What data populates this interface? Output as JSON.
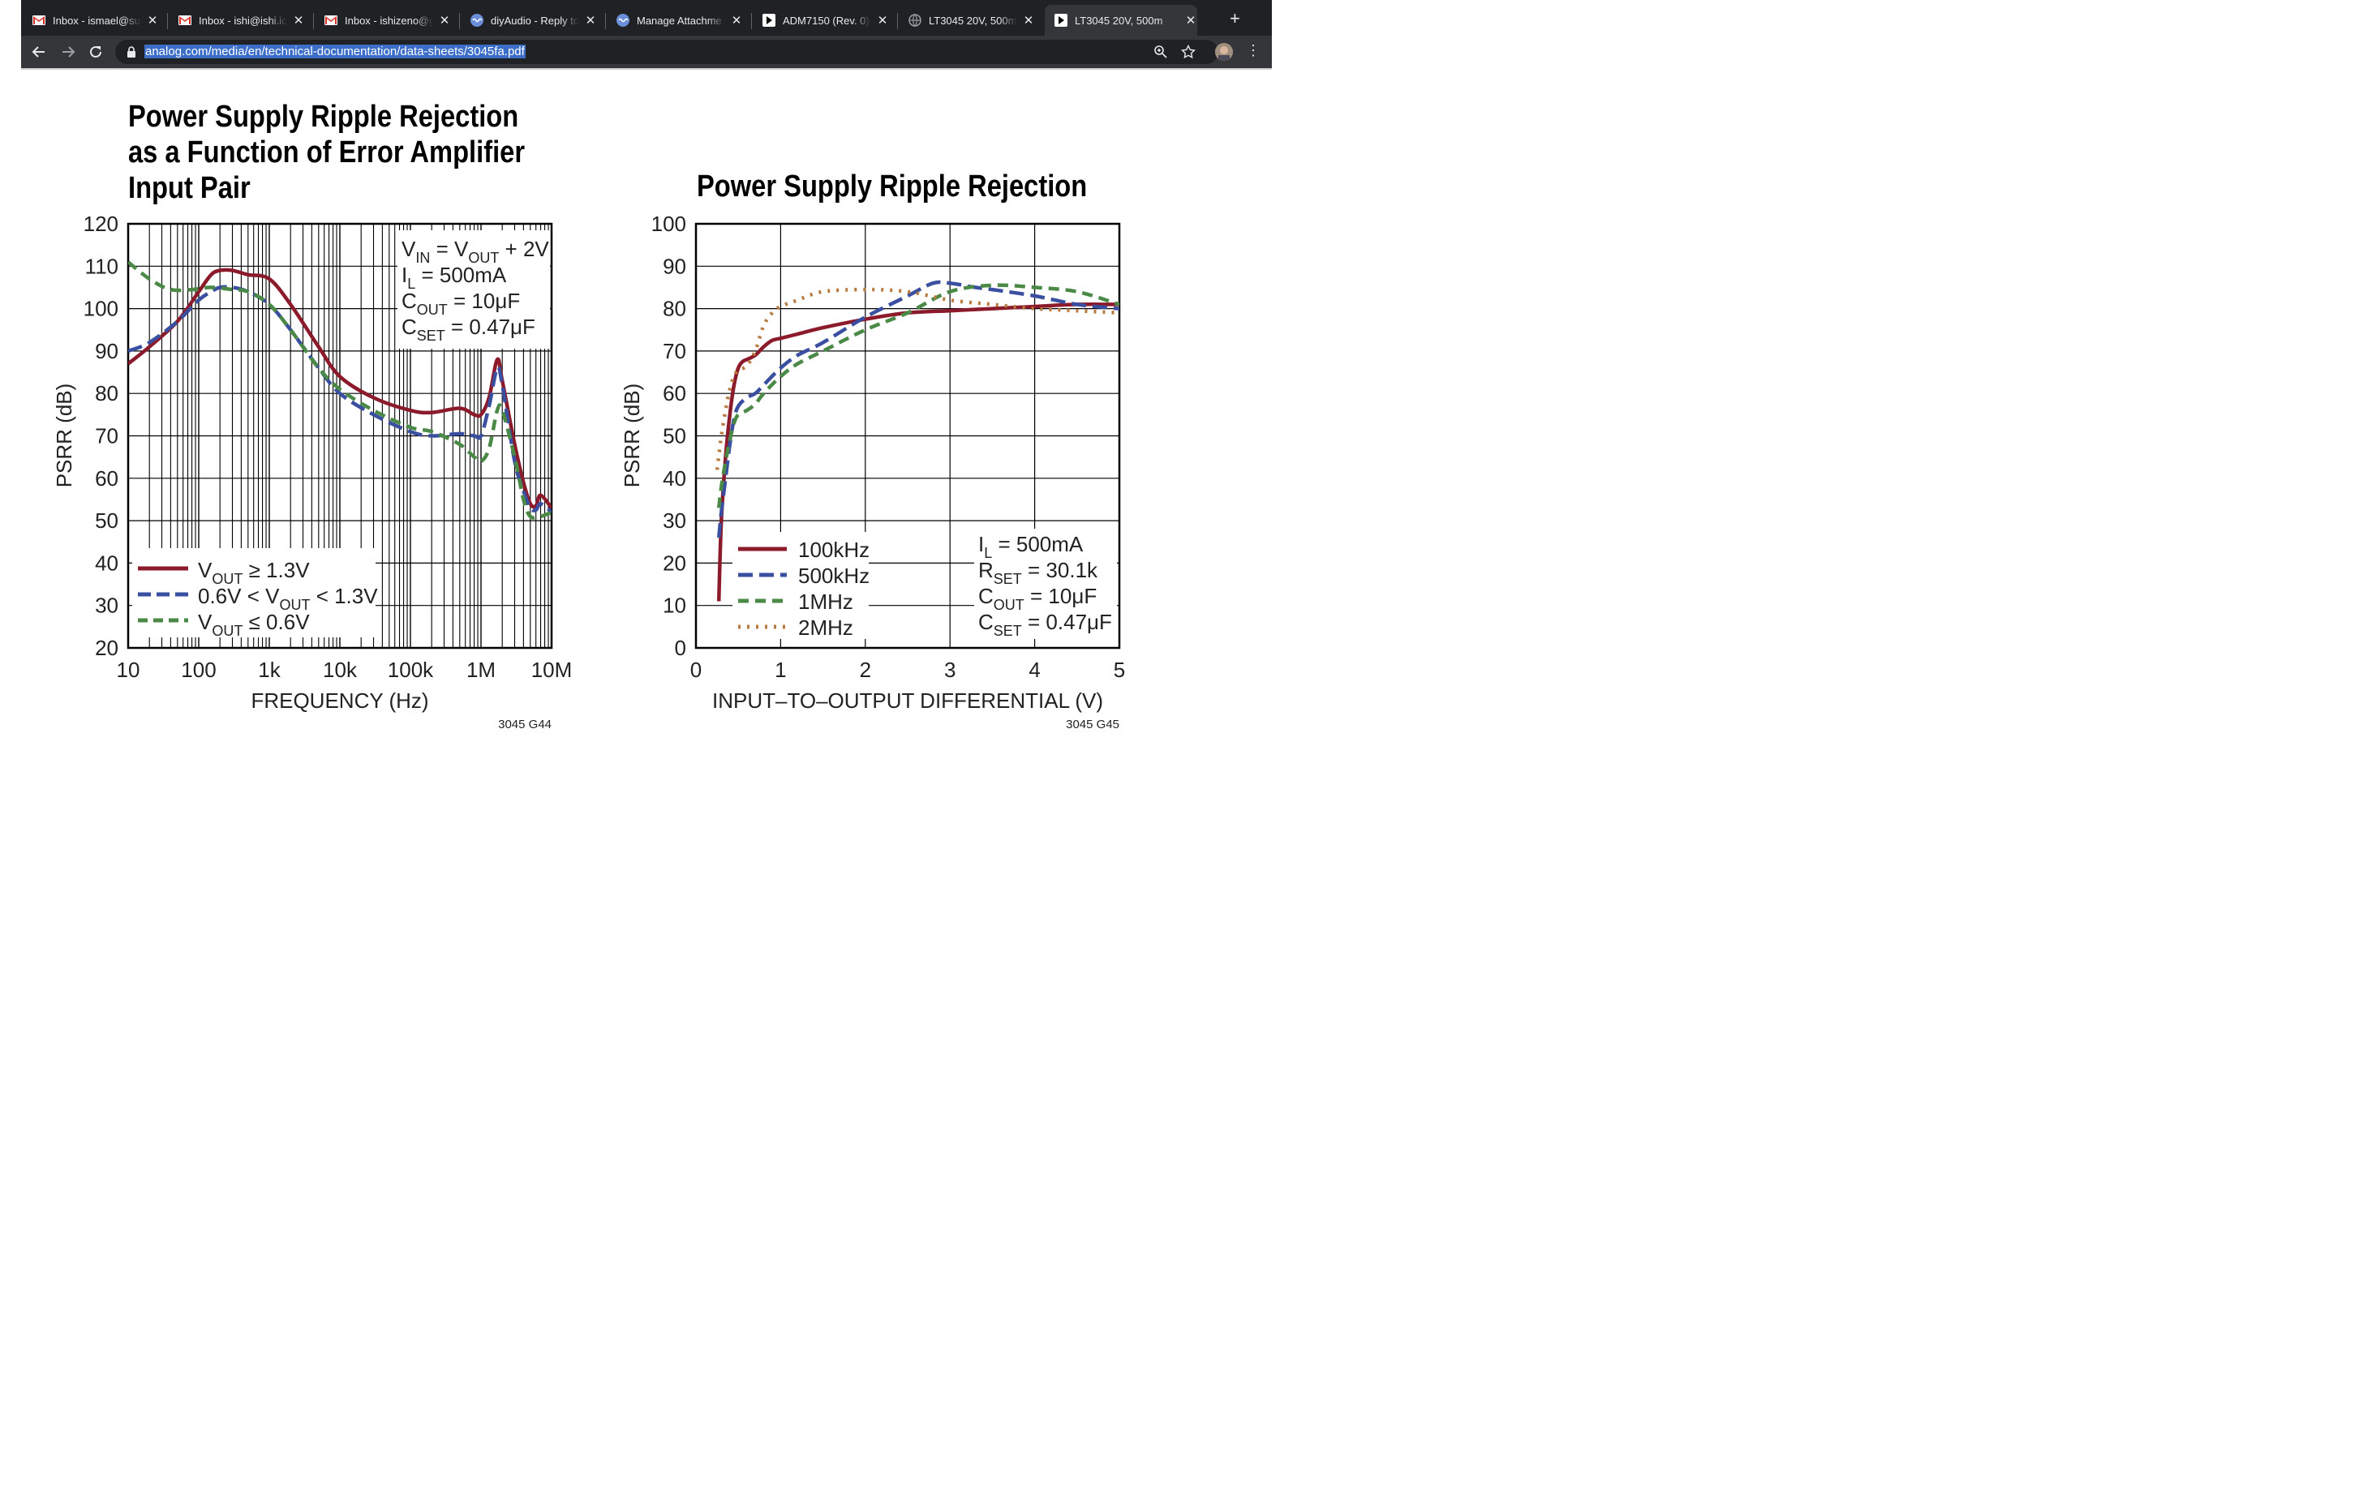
{
  "browser": {
    "tabs": [
      {
        "title": "Inbox - ismael@su",
        "icon": "gmail-icon"
      },
      {
        "title": "Inbox - ishi@ishi.ic",
        "icon": "gmail-icon"
      },
      {
        "title": "Inbox - ishizeno@g",
        "icon": "gmail-icon"
      },
      {
        "title": "diyAudio - Reply to",
        "icon": "diyaudio-icon"
      },
      {
        "title": "Manage Attachme",
        "icon": "diyaudio-icon"
      },
      {
        "title": "ADM7150 (Rev. 0)",
        "icon": "pdf-icon"
      },
      {
        "title": "LT3045 20V, 500m",
        "icon": "globe-icon"
      },
      {
        "title": "LT3045 20V, 500m",
        "icon": "pdf-icon",
        "active": true
      }
    ],
    "new_tab": "+",
    "url": "analog.com/media/en/technical-documentation/data-sheets/3045fa.pdf"
  },
  "document": {
    "left_chart": {
      "title_lines": [
        "Power Supply Ripple Rejection",
        "as a Function of Error Amplifier",
        "Input Pair"
      ],
      "conditions": {
        "vin_main": "V",
        "vin_sub": "IN",
        "vin_mid": " = V",
        "vin_sub2": "OUT",
        "vin_end": " + 2V",
        "il_main": "I",
        "il_sub": "L",
        "il_end": " = 500mA",
        "cout_main": "C",
        "cout_sub": "OUT",
        "cout_end": " = 10μF",
        "cset_main": "C",
        "cset_sub": "SET",
        "cset_end": " = 0.47μF"
      },
      "legend": [
        {
          "pre": "V",
          "sub": "OUT",
          "post": " ≥ 1.3V"
        },
        {
          "pre": "0.6V < V",
          "sub": "OUT",
          "post": " < 1.3V"
        },
        {
          "pre": "V",
          "sub": "OUT",
          "post": " ≤ 0.6V"
        }
      ],
      "code": "3045 G44"
    },
    "right_chart": {
      "title": "Power Supply Ripple Rejection",
      "conditions": {
        "il_main": "I",
        "il_sub": "L",
        "il_end": " = 500mA",
        "rset_main": "R",
        "rset_sub": "SET",
        "rset_end": " = 30.1k",
        "cout_main": "C",
        "cout_sub": "OUT",
        "cout_end": " = 10μF",
        "cset_main": "C",
        "cset_sub": "SET",
        "cset_end": " = 0.47μF"
      },
      "code": "3045 G45"
    }
  },
  "chart_data": [
    {
      "type": "line",
      "xscale": "log",
      "xlabel": "FREQUENCY (Hz)",
      "ylabel": "PSRR (dB)",
      "xlim": [
        10,
        10000000
      ],
      "ylim": [
        20,
        120
      ],
      "x_ticks": [
        10,
        100,
        1000,
        10000,
        100000,
        1000000,
        10000000
      ],
      "x_tick_labels": [
        "10",
        "100",
        "1k",
        "10k",
        "100k",
        "1M",
        "10M"
      ],
      "y_ticks": [
        20,
        30,
        40,
        50,
        60,
        70,
        80,
        90,
        100,
        110,
        120
      ],
      "legend_position": "bottom-left",
      "series": [
        {
          "name": "VOUT ≥ 1.3V",
          "color": "#8b1a2b",
          "dash": "solid",
          "x": [
            10,
            20,
            50,
            100,
            150,
            200,
            300,
            500,
            1000,
            2000,
            5000,
            10000,
            30000,
            100000,
            200000,
            500000,
            800000,
            1000000,
            1300000,
            1700000,
            2000000,
            3000000,
            4000000,
            5000000,
            6000000,
            7000000,
            10000000
          ],
          "y": [
            87,
            91,
            97,
            104,
            108,
            109,
            109,
            108,
            107,
            101,
            91,
            84,
            79,
            76,
            75.5,
            76.5,
            75,
            75,
            79,
            88,
            83,
            68,
            59,
            54,
            53.5,
            56,
            53
          ]
        },
        {
          "name": "0.6V < VOUT < 1.3V",
          "color": "#3a4fa0",
          "dash": "long-dash",
          "x": [
            10,
            20,
            50,
            100,
            150,
            200,
            300,
            500,
            1000,
            2000,
            5000,
            10000,
            30000,
            100000,
            200000,
            500000,
            800000,
            1000000,
            1300000,
            1700000,
            2000000,
            3000000,
            4000000,
            5000000,
            6000000,
            7000000,
            10000000
          ],
          "y": [
            90,
            92,
            97,
            102,
            104,
            105,
            105,
            104,
            101,
            95,
            86,
            80,
            75,
            71,
            70,
            70.5,
            70,
            70,
            77,
            86,
            82,
            64,
            57,
            53,
            52.5,
            54,
            52
          ]
        },
        {
          "name": "VOUT ≤ 0.6V",
          "color": "#4a8a46",
          "dash": "dash",
          "x": [
            10,
            20,
            40,
            80,
            150,
            300,
            500,
            1000,
            2000,
            5000,
            10000,
            30000,
            100000,
            200000,
            500000,
            800000,
            1000000,
            1300000,
            1700000,
            2000000,
            3000000,
            4000000,
            5000000,
            7000000,
            10000000
          ],
          "y": [
            111,
            107,
            104.5,
            104.5,
            105,
            104.5,
            104,
            101,
            95,
            86,
            81,
            76,
            72,
            71,
            68,
            65,
            64,
            67,
            76,
            76,
            65,
            55,
            51,
            51,
            52
          ]
        }
      ]
    },
    {
      "type": "line",
      "xlabel": "INPUT–TO–OUTPUT DIFFERENTIAL (V)",
      "ylabel": "PSRR (dB)",
      "xlim": [
        0,
        5
      ],
      "ylim": [
        0,
        100
      ],
      "x_ticks": [
        0,
        1,
        2,
        3,
        4,
        5
      ],
      "y_ticks": [
        0,
        10,
        20,
        30,
        40,
        50,
        60,
        70,
        80,
        90,
        100
      ],
      "legend_position": "bottom-left",
      "series": [
        {
          "name": "100kHz",
          "color": "#8b1a2b",
          "dash": "solid",
          "x": [
            0.27,
            0.3,
            0.35,
            0.4,
            0.45,
            0.5,
            0.55,
            0.6,
            0.7,
            0.8,
            0.9,
            1.0,
            1.2,
            1.5,
            2.0,
            2.5,
            3.0,
            3.5,
            4.0,
            4.5,
            5.0
          ],
          "y": [
            11,
            30,
            45,
            55,
            62,
            66,
            67.5,
            68,
            69,
            71,
            72.5,
            73,
            74,
            75.5,
            77.5,
            79,
            79.5,
            80,
            80.5,
            81,
            81
          ]
        },
        {
          "name": "500kHz",
          "color": "#3a4fa0",
          "dash": "long-dash",
          "x": [
            0.27,
            0.3,
            0.35,
            0.4,
            0.45,
            0.5,
            0.6,
            0.7,
            0.8,
            1.0,
            1.2,
            1.5,
            2.0,
            2.5,
            2.8,
            3.0,
            3.3,
            3.5,
            4.0,
            4.5,
            5.0
          ],
          "y": [
            26,
            32,
            40,
            48,
            54,
            57,
            59,
            60,
            62,
            66,
            69,
            72,
            78,
            83,
            86,
            86,
            85,
            84.5,
            83,
            81,
            80
          ]
        },
        {
          "name": "1MHz",
          "color": "#4a8a46",
          "dash": "dash",
          "x": [
            0.27,
            0.3,
            0.35,
            0.4,
            0.45,
            0.5,
            0.6,
            0.7,
            0.8,
            1.0,
            1.2,
            1.5,
            2.0,
            2.5,
            3.0,
            3.5,
            4.0,
            4.5,
            5.0
          ],
          "y": [
            33,
            38,
            44,
            49,
            53,
            55,
            56,
            57.5,
            60,
            64,
            67,
            70,
            75,
            79,
            84,
            85.5,
            85,
            84,
            81
          ]
        },
        {
          "name": "2MHz",
          "color": "#b87a3e",
          "dash": "dot",
          "x": [
            0.25,
            0.3,
            0.35,
            0.4,
            0.45,
            0.5,
            0.6,
            0.7,
            0.8,
            0.9,
            1.0,
            1.2,
            1.5,
            2.0,
            2.5,
            3.0,
            3.5,
            4.0,
            4.5,
            5.0
          ],
          "y": [
            42,
            50,
            56,
            61,
            64,
            65.5,
            66.5,
            70,
            76,
            79,
            80.5,
            82,
            84,
            84.5,
            84,
            82,
            81,
            80,
            79.5,
            79
          ]
        }
      ]
    }
  ]
}
